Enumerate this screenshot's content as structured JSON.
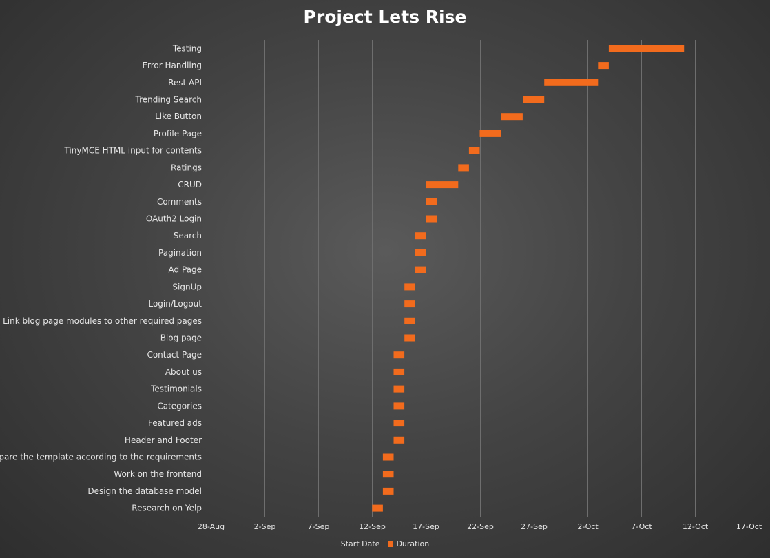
{
  "chart_data": {
    "type": "bar",
    "orientation": "horizontal",
    "stacked": true,
    "title": "Project Lets Rise",
    "x_ticks": [
      "28-Aug",
      "2-Sep",
      "7-Sep",
      "12-Sep",
      "17-Sep",
      "22-Sep",
      "27-Sep",
      "2-Oct",
      "7-Oct",
      "12-Oct",
      "17-Oct"
    ],
    "x_tick_dates": [
      "2018-08-28",
      "2018-09-02",
      "2018-09-07",
      "2018-09-12",
      "2018-09-17",
      "2018-09-22",
      "2018-09-27",
      "2018-10-02",
      "2018-10-07",
      "2018-10-12",
      "2018-10-17"
    ],
    "xlim": [
      "2018-08-28",
      "2018-10-17"
    ],
    "grid": true,
    "legend_position": "bottom",
    "series": [
      {
        "name": "Start Date",
        "color": "none"
      },
      {
        "name": "Duration",
        "color": "#f26b1d"
      }
    ],
    "tasks": [
      {
        "name": "Research on Yelp",
        "start": "2018-09-12",
        "duration": 1
      },
      {
        "name": "Design the database model",
        "start": "2018-09-13",
        "duration": 1
      },
      {
        "name": "Work on the frontend",
        "start": "2018-09-13",
        "duration": 1
      },
      {
        "name": "Prepare the template according to the requirements",
        "start": "2018-09-13",
        "duration": 1
      },
      {
        "name": "Header and Footer",
        "start": "2018-09-14",
        "duration": 1
      },
      {
        "name": "Featured ads",
        "start": "2018-09-14",
        "duration": 1
      },
      {
        "name": "Categories",
        "start": "2018-09-14",
        "duration": 1
      },
      {
        "name": "Testimonials",
        "start": "2018-09-14",
        "duration": 1
      },
      {
        "name": "About us",
        "start": "2018-09-14",
        "duration": 1
      },
      {
        "name": "Contact Page",
        "start": "2018-09-14",
        "duration": 1
      },
      {
        "name": "Blog page",
        "start": "2018-09-15",
        "duration": 1
      },
      {
        "name": "Link blog page modules to other required pages",
        "start": "2018-09-15",
        "duration": 1
      },
      {
        "name": "Login/Logout",
        "start": "2018-09-15",
        "duration": 1
      },
      {
        "name": "SignUp",
        "start": "2018-09-15",
        "duration": 1
      },
      {
        "name": "Ad Page",
        "start": "2018-09-16",
        "duration": 1
      },
      {
        "name": "Pagination",
        "start": "2018-09-16",
        "duration": 1
      },
      {
        "name": "Search",
        "start": "2018-09-16",
        "duration": 1
      },
      {
        "name": "OAuth2 Login",
        "start": "2018-09-17",
        "duration": 1
      },
      {
        "name": "Comments",
        "start": "2018-09-17",
        "duration": 1
      },
      {
        "name": "CRUD",
        "start": "2018-09-17",
        "duration": 3
      },
      {
        "name": "Ratings",
        "start": "2018-09-20",
        "duration": 1
      },
      {
        "name": "TinyMCE HTML input for contents",
        "start": "2018-09-21",
        "duration": 1
      },
      {
        "name": "Profile Page",
        "start": "2018-09-22",
        "duration": 2
      },
      {
        "name": "Like Button",
        "start": "2018-09-24",
        "duration": 2
      },
      {
        "name": "Trending Search",
        "start": "2018-09-26",
        "duration": 2
      },
      {
        "name": "Rest API",
        "start": "2018-09-28",
        "duration": 5
      },
      {
        "name": "Error Handling",
        "start": "2018-10-03",
        "duration": 1
      },
      {
        "name": "Testing",
        "start": "2018-10-04",
        "duration": 7
      }
    ]
  }
}
